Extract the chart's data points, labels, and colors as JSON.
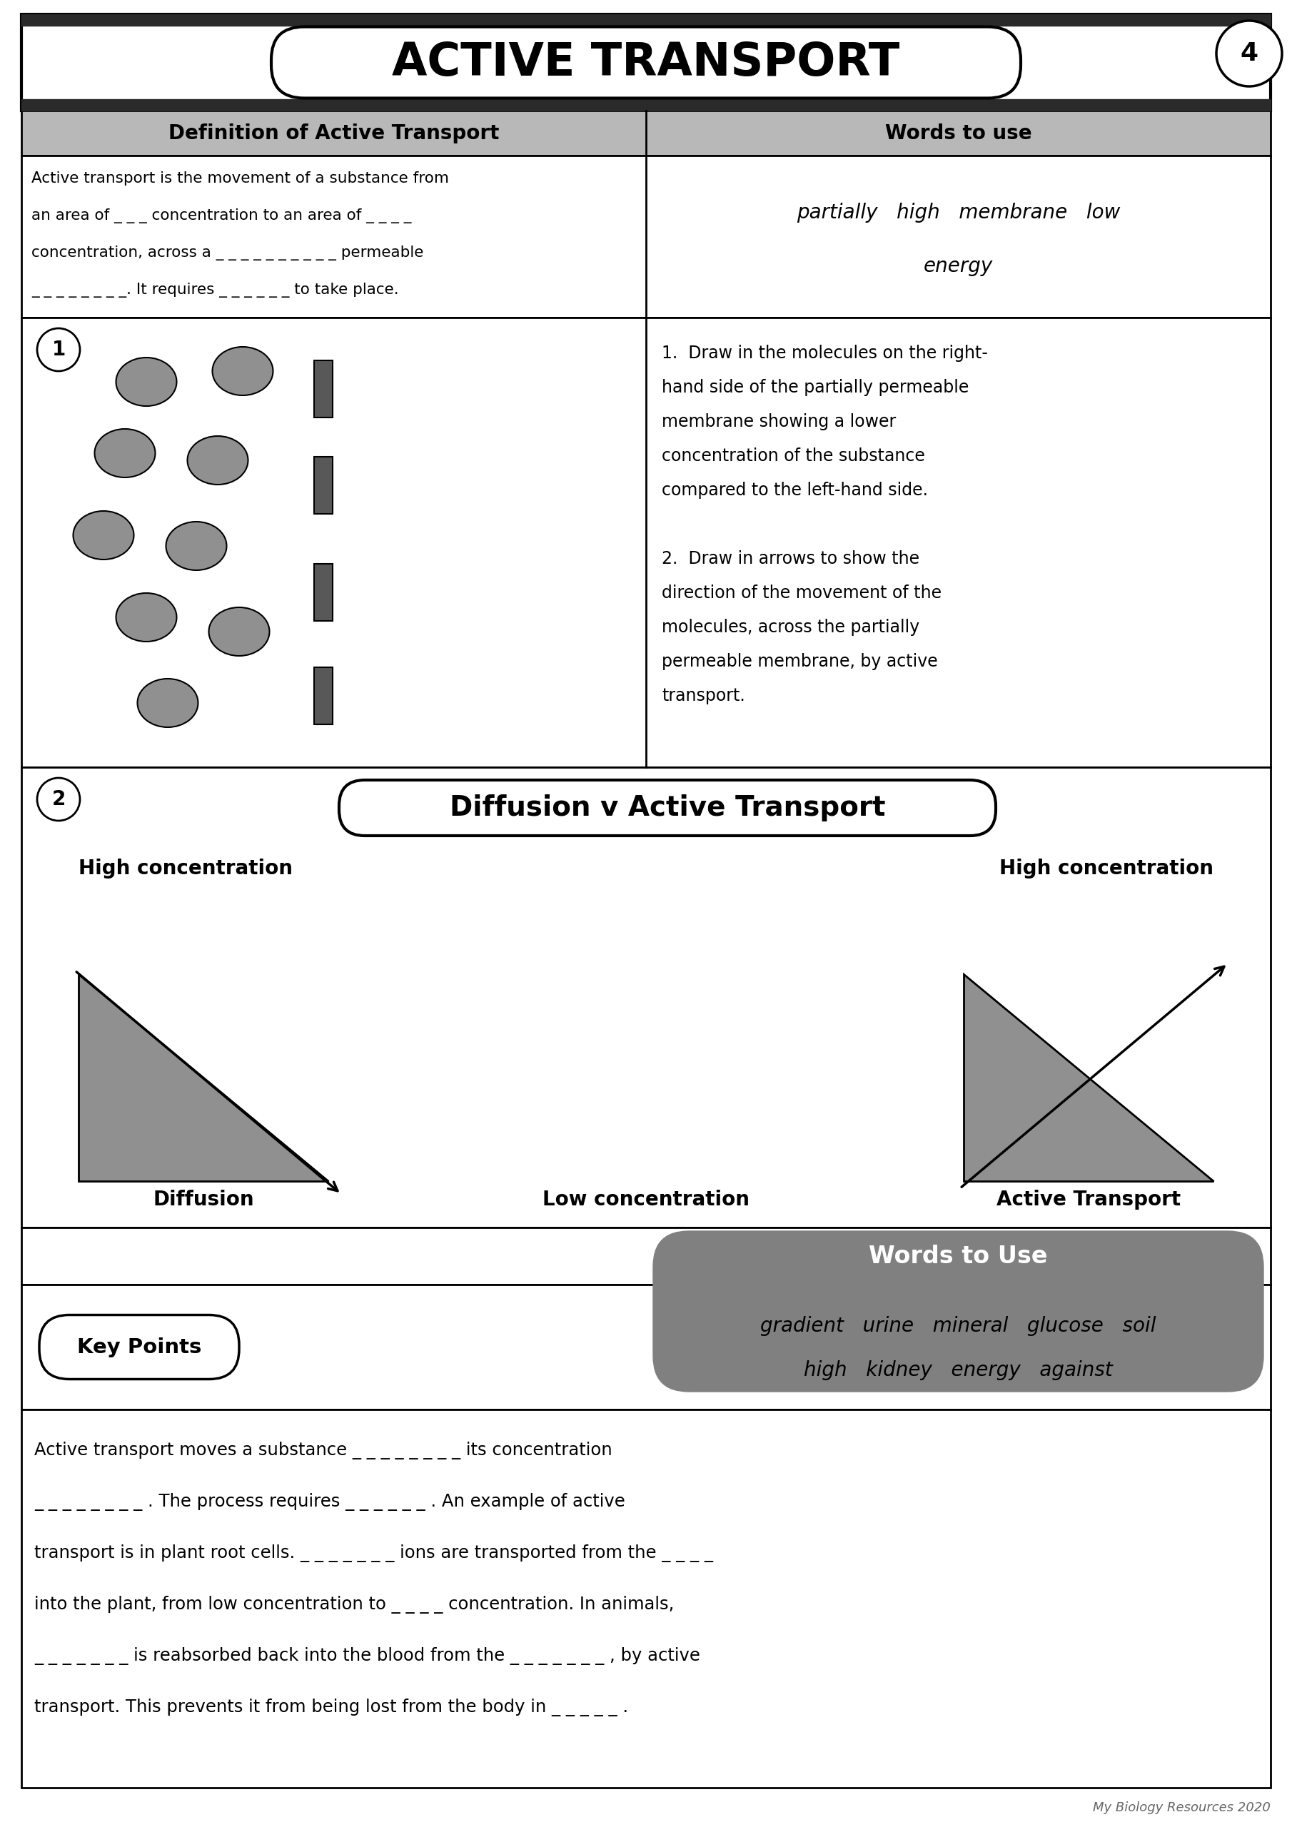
{
  "title": "ACTIVE TRANSPORT",
  "page_num": "4",
  "bg_color": "#ffffff",
  "col1_header": "Definition of Active Transport",
  "col2_header": "Words to use",
  "words_to_use_1_line1": "partially   high   membrane   low",
  "words_to_use_1_line2": "energy",
  "section2_title": "Diffusion v Active Transport",
  "high_conc_left": "High concentration",
  "high_conc_right": "High concentration",
  "low_conc": "Low concentration",
  "diffusion_label": "Diffusion",
  "active_transport_label": "Active Transport",
  "words_to_use_2_title": "Words to Use",
  "words_to_use_2_line1": "gradient   urine   mineral   glucose   soil",
  "words_to_use_2_line2": "high   kidney   energy   against",
  "key_points_label": "Key Points",
  "footer_text": "My Biology Resources 2020",
  "triangle_color": "#909090",
  "molecule_color": "#909090",
  "membrane_color": "#585858",
  "def_lines": [
    "Active transport is the movement of a substance from",
    "an area of _ _ _ concentration to an area of _ _ _ _",
    "concentration, across a _ _ _ _ _ _ _ _ _ _ permeable",
    "_ _ _ _ _ _ _ _. It requires _ _ _ _ _ _ to take place."
  ],
  "instr_lines": [
    "1.  Draw in the molecules on the right-",
    "hand side of the partially permeable",
    "membrane showing a lower",
    "concentration of the substance",
    "compared to the left-hand side.",
    "",
    "2.  Draw in arrows to show the",
    "direction of the movement of the",
    "molecules, across the partially",
    "permeable membrane, by active",
    "transport."
  ],
  "kp_lines": [
    "Active transport moves a substance _ _ _ _ _ _ _ _ its concentration",
    "_ _ _ _ _ _ _ _ . The process requires _ _ _ _ _ _ . An example of active",
    "transport is in plant root cells. _ _ _ _ _ _ _ ions are transported from the _ _ _ _",
    "into the plant, from low concentration to _ _ _ _ concentration. In animals,",
    "_ _ _ _ _ _ _ is reabsorbed back into the blood from the _ _ _ _ _ _ _ , by active",
    "transport. This prevents it from being lost from the body in _ _ _ _ _ ."
  ]
}
